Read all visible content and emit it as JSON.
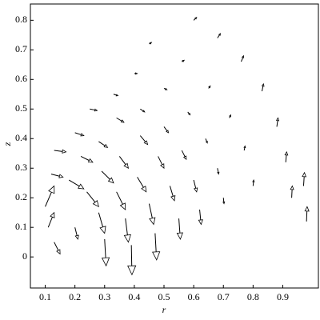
{
  "chart_data": {
    "type": "quiver",
    "xlabel": "r",
    "ylabel": "z",
    "xlim": [
      0.05,
      1.02
    ],
    "ylim": [
      -0.105,
      0.855
    ],
    "xticks": [
      0.1,
      0.2,
      0.3,
      0.4,
      0.5,
      0.6,
      0.7,
      0.8,
      0.9
    ],
    "yticks": [
      0,
      0.1,
      0.2,
      0.3,
      0.4,
      0.5,
      0.6,
      0.7,
      0.8
    ],
    "color": "#000000",
    "arrows": [
      {
        "x": 0.12,
        "y": 0.28,
        "u": 0.04,
        "v": -0.01
      },
      {
        "x": 0.18,
        "y": 0.26,
        "u": 0.05,
        "v": -0.03
      },
      {
        "x": 0.24,
        "y": 0.22,
        "u": 0.04,
        "v": -0.05
      },
      {
        "x": 0.28,
        "y": 0.15,
        "u": 0.02,
        "v": -0.07
      },
      {
        "x": 0.3,
        "y": 0.06,
        "u": 0.005,
        "v": -0.09
      },
      {
        "x": 0.13,
        "y": 0.36,
        "u": 0.04,
        "v": -0.005
      },
      {
        "x": 0.22,
        "y": 0.34,
        "u": 0.04,
        "v": -0.02
      },
      {
        "x": 0.29,
        "y": 0.29,
        "u": 0.04,
        "v": -0.04
      },
      {
        "x": 0.34,
        "y": 0.22,
        "u": 0.03,
        "v": -0.06
      },
      {
        "x": 0.37,
        "y": 0.13,
        "u": 0.01,
        "v": -0.08
      },
      {
        "x": 0.39,
        "y": 0.04,
        "u": 0.002,
        "v": -0.1
      },
      {
        "x": 0.2,
        "y": 0.42,
        "u": 0.03,
        "v": -0.01
      },
      {
        "x": 0.28,
        "y": 0.39,
        "u": 0.03,
        "v": -0.02
      },
      {
        "x": 0.35,
        "y": 0.34,
        "u": 0.03,
        "v": -0.04
      },
      {
        "x": 0.41,
        "y": 0.27,
        "u": 0.03,
        "v": -0.05
      },
      {
        "x": 0.45,
        "y": 0.18,
        "u": 0.015,
        "v": -0.07
      },
      {
        "x": 0.47,
        "y": 0.08,
        "u": 0.005,
        "v": -0.09
      },
      {
        "x": 0.25,
        "y": 0.5,
        "u": 0.025,
        "v": -0.005
      },
      {
        "x": 0.34,
        "y": 0.47,
        "u": 0.025,
        "v": -0.015
      },
      {
        "x": 0.42,
        "y": 0.41,
        "u": 0.025,
        "v": -0.03
      },
      {
        "x": 0.48,
        "y": 0.34,
        "u": 0.02,
        "v": -0.04
      },
      {
        "x": 0.52,
        "y": 0.24,
        "u": 0.015,
        "v": -0.05
      },
      {
        "x": 0.55,
        "y": 0.13,
        "u": 0.005,
        "v": -0.07
      },
      {
        "x": 0.33,
        "y": 0.55,
        "u": 0.015,
        "v": -0.005
      },
      {
        "x": 0.42,
        "y": 0.5,
        "u": 0.015,
        "v": -0.01
      },
      {
        "x": 0.5,
        "y": 0.44,
        "u": 0.015,
        "v": -0.02
      },
      {
        "x": 0.56,
        "y": 0.36,
        "u": 0.015,
        "v": -0.03
      },
      {
        "x": 0.6,
        "y": 0.26,
        "u": 0.01,
        "v": -0.04
      },
      {
        "x": 0.62,
        "y": 0.16,
        "u": 0.005,
        "v": -0.05
      },
      {
        "x": 0.4,
        "y": 0.62,
        "u": 0.01,
        "v": 0
      },
      {
        "x": 0.5,
        "y": 0.57,
        "u": 0.01,
        "v": -0.005
      },
      {
        "x": 0.58,
        "y": 0.49,
        "u": 0.008,
        "v": -0.01
      },
      {
        "x": 0.64,
        "y": 0.4,
        "u": 0.006,
        "v": -0.015
      },
      {
        "x": 0.68,
        "y": 0.3,
        "u": 0.004,
        "v": -0.02
      },
      {
        "x": 0.7,
        "y": 0.2,
        "u": 0.002,
        "v": -0.02
      },
      {
        "x": 0.45,
        "y": 0.72,
        "u": 0.008,
        "v": 0.005
      },
      {
        "x": 0.56,
        "y": 0.66,
        "u": 0.008,
        "v": 0.005
      },
      {
        "x": 0.65,
        "y": 0.57,
        "u": 0.006,
        "v": 0.008
      },
      {
        "x": 0.72,
        "y": 0.47,
        "u": 0.005,
        "v": 0.01
      },
      {
        "x": 0.77,
        "y": 0.36,
        "u": 0.003,
        "v": 0.015
      },
      {
        "x": 0.8,
        "y": 0.24,
        "u": 0.002,
        "v": 0.02
      },
      {
        "x": 0.6,
        "y": 0.8,
        "u": 0.01,
        "v": 0.01
      },
      {
        "x": 0.68,
        "y": 0.74,
        "u": 0.01,
        "v": 0.015
      },
      {
        "x": 0.76,
        "y": 0.66,
        "u": 0.008,
        "v": 0.02
      },
      {
        "x": 0.83,
        "y": 0.56,
        "u": 0.005,
        "v": 0.025
      },
      {
        "x": 0.88,
        "y": 0.44,
        "u": 0.004,
        "v": 0.03
      },
      {
        "x": 0.91,
        "y": 0.32,
        "u": 0.003,
        "v": 0.035
      },
      {
        "x": 0.93,
        "y": 0.2,
        "u": 0.002,
        "v": 0.04
      },
      {
        "x": 0.98,
        "y": 0.12,
        "u": 0.002,
        "v": 0.05
      },
      {
        "x": 0.97,
        "y": 0.24,
        "u": 0.003,
        "v": 0.045
      },
      {
        "x": 0.1,
        "y": 0.17,
        "u": 0.03,
        "v": 0.07
      },
      {
        "x": 0.11,
        "y": 0.1,
        "u": 0.02,
        "v": 0.05
      },
      {
        "x": 0.13,
        "y": 0.05,
        "u": 0.02,
        "v": -0.04
      },
      {
        "x": 0.2,
        "y": 0.1,
        "u": 0.01,
        "v": -0.04
      }
    ]
  }
}
